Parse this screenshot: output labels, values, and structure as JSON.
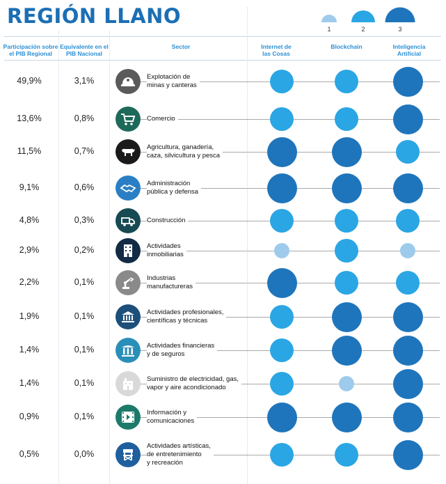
{
  "title": "REGIÓN LLANO",
  "legend": {
    "items": [
      {
        "label": "1",
        "level": 1
      },
      {
        "label": "2",
        "level": 2
      },
      {
        "label": "3",
        "level": 3
      }
    ]
  },
  "headers": {
    "participacion": "Participación sobre el PIB Regional",
    "equivalente": "Equivalente en el PIB Nacional",
    "sector": "Sector",
    "iot": "Internet de las Cosas",
    "blockchain": "Blockchain",
    "ia": "Inteligencia Artificial"
  },
  "colors": {
    "level1": "#9ecbec",
    "level2": "#2aa6e4",
    "level3": "#1f75bb",
    "accent": "#1b6fb5"
  },
  "chart_data": {
    "type": "table",
    "title": "REGIÓN LLANO",
    "columns": [
      "Participación sobre el PIB Regional",
      "Equivalente en el PIB Nacional",
      "Sector",
      "Internet de las Cosas",
      "Blockchain",
      "Inteligencia Artificial"
    ],
    "rows": [
      {
        "participacion": "49,9%",
        "equivalente": "3,1%",
        "sector": "Explotación de minas y canteras",
        "lines": [
          "Explotación de",
          "minas y canteras"
        ],
        "icon": "mining-helmet-icon",
        "icon_color": "#5a5a5a",
        "iot": 2,
        "blockchain": 2,
        "ia": 3
      },
      {
        "participacion": "13,6%",
        "equivalente": "0,8%",
        "sector": "Comercio",
        "lines": [
          "Comercio"
        ],
        "icon": "shopping-cart-icon",
        "icon_color": "#1d6a5a",
        "iot": 2,
        "blockchain": 2,
        "ia": 3
      },
      {
        "participacion": "11,5%",
        "equivalente": "0,7%",
        "sector": "Agricultura, ganadería, caza, silvicultura y pesca",
        "lines": [
          "Agricultura, ganadería,",
          "caza, silvicultura y pesca"
        ],
        "icon": "cow-icon",
        "icon_color": "#1a1a1a",
        "iot": 3,
        "blockchain": 3,
        "ia": 2
      },
      {
        "participacion": "9,1%",
        "equivalente": "0,6%",
        "sector": "Administración pública y defensa",
        "lines": [
          "Administración",
          "pública y defensa"
        ],
        "icon": "handshake-icon",
        "icon_color": "#2a7fc4",
        "iot": 3,
        "blockchain": 3,
        "ia": 3
      },
      {
        "participacion": "4,8%",
        "equivalente": "0,3%",
        "sector": "Construcción",
        "lines": [
          "Construcción"
        ],
        "icon": "truck-icon",
        "icon_color": "#174a52",
        "iot": 2,
        "blockchain": 2,
        "ia": 2
      },
      {
        "participacion": "2,9%",
        "equivalente": "0,2%",
        "sector": "Actividades inmobiliarias",
        "lines": [
          "Actividades",
          "inmobiliarias"
        ],
        "icon": "building-icon",
        "icon_color": "#132b45",
        "iot": 1,
        "blockchain": 2,
        "ia": 1
      },
      {
        "participacion": "2,2%",
        "equivalente": "0,1%",
        "sector": "Industrias manufactureras",
        "lines": [
          "Industrias",
          "manufactureras"
        ],
        "icon": "robot-arm-icon",
        "icon_color": "#8a8a8a",
        "iot": 3,
        "blockchain": 2,
        "ia": 2
      },
      {
        "participacion": "1,9%",
        "equivalente": "0,1%",
        "sector": "Actividades profesionales, científicas y técnicas",
        "lines": [
          "Actividades profesionales,",
          "científicas y técnicas"
        ],
        "icon": "institution-icon",
        "icon_color": "#1c4f7a",
        "iot": 2,
        "blockchain": 3,
        "ia": 3
      },
      {
        "participacion": "1,4%",
        "equivalente": "0,1%",
        "sector": "Actividades financieras y de seguros",
        "lines": [
          "Actividades financieras",
          "y de seguros"
        ],
        "icon": "bank-icon",
        "icon_color": "#2a8fb8",
        "iot": 2,
        "blockchain": 3,
        "ia": 3
      },
      {
        "participacion": "1,4%",
        "equivalente": "0,1%",
        "sector": "Suministro de electricidad, gas, vapor y aire acondicionado",
        "lines": [
          "Suministro de electricidad, gas,",
          "vapor y aire acondicionado"
        ],
        "icon": "power-plant-icon",
        "icon_color": "#d9d9d9",
        "iot": 2,
        "blockchain": 1,
        "ia": 3
      },
      {
        "participacion": "0,9%",
        "equivalente": "0,1%",
        "sector": "Información y comunicaciones",
        "lines": [
          "Información y",
          "comunicaciones"
        ],
        "icon": "film-play-icon",
        "icon_color": "#1c7a6a",
        "iot": 3,
        "blockchain": 3,
        "ia": 3
      },
      {
        "participacion": "0,5%",
        "equivalente": "0,0%",
        "sector": "Actividades artísticas, de entretenimiento y recreación",
        "lines": [
          "Actividades artísticas,",
          "de entretenimiento",
          "y recreación"
        ],
        "icon": "director-chair-icon",
        "icon_color": "#1f5f9e",
        "iot": 2,
        "blockchain": 2,
        "ia": 3
      }
    ]
  }
}
